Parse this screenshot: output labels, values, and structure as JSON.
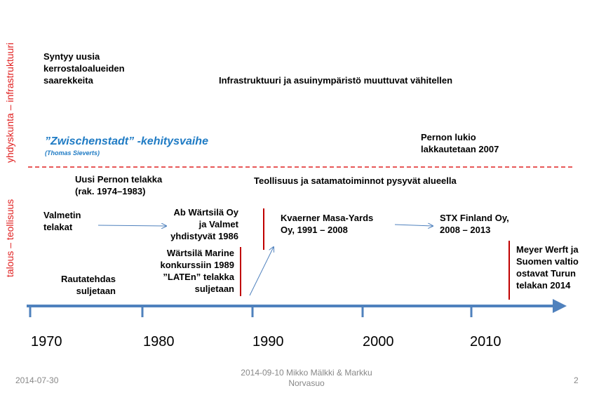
{
  "side_labels": {
    "top": "yhdyskunta – infrastruktuuri",
    "bottom": "talous – teollisuus"
  },
  "infrastructure": {
    "islands": "Syntyy uusia\nkerrostaloalueiden\nsaarekkeita",
    "gradual": "Infrastruktuuri ja asuinympäristö muuttuvat vähitellen",
    "phase": "”Zwischenstadt” -kehitysvaihe",
    "phase_author": "(Thomas Sieverts)",
    "school": "Pernon lukio\nlakkautetaan 2007"
  },
  "industry": {
    "new_yard": "Uusi Pernon telakka\n(rak. 1974–1983)",
    "remains": "Teollisuus ja satamatoiminnot pysyvät alueella",
    "valmet": "Valmetin\ntelakat",
    "merger": "Ab Wärtsilä Oy\nja Valmet\nyhdistyvät 1986",
    "kvaerner": "Kvaerner Masa-Yards\nOy, 1991 – 2008",
    "stx": "STX Finland Oy,\n2008 – 2013",
    "bankruptcy": "Wärtsilä Marine\nkonkurssiin 1989\n”LATEn” telakka\nsuljetaan",
    "meyer": "Meyer Werft ja\nSuomen valtio\nostavat Turun\ntelakan 2014",
    "railway": "Rautatehdas\nsuljetaan"
  },
  "timeline": {
    "years": [
      1970,
      1980,
      1990,
      2000,
      2010
    ]
  },
  "footer": {
    "date": "2014-07-30",
    "authors": "2014-09-10 Mikko Mälkki & Markku\nNorvasuo",
    "page": "2"
  }
}
